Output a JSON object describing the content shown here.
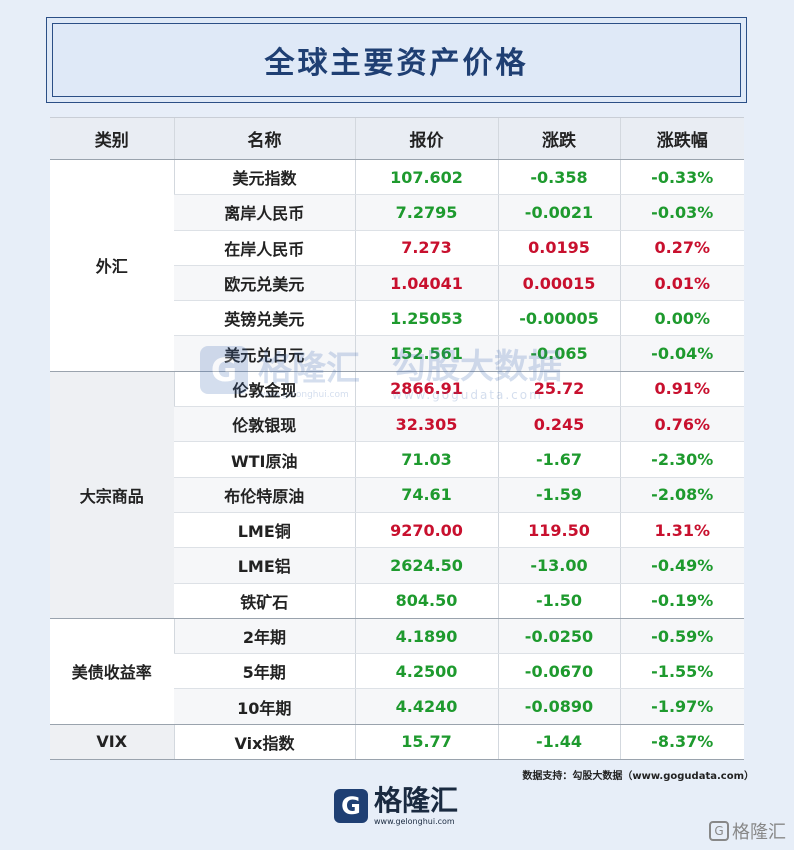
{
  "title": "全球主要资产价格",
  "table": {
    "headers": [
      "类别",
      "名称",
      "报价",
      "涨跌",
      "涨跌幅"
    ],
    "groups": [
      {
        "category": "外汇",
        "rows": [
          {
            "name": "美元指数",
            "price": "107.602",
            "change": "-0.358",
            "pct": "-0.33%",
            "dir": "down"
          },
          {
            "name": "离岸人民币",
            "price": "7.2795",
            "change": "-0.0021",
            "pct": "-0.03%",
            "dir": "down"
          },
          {
            "name": "在岸人民币",
            "price": "7.273",
            "change": "0.0195",
            "pct": "0.27%",
            "dir": "up"
          },
          {
            "name": "欧元兑美元",
            "price": "1.04041",
            "change": "0.00015",
            "pct": "0.01%",
            "dir": "up"
          },
          {
            "name": "英镑兑美元",
            "price": "1.25053",
            "change": "-0.00005",
            "pct": "0.00%",
            "dir": "down"
          },
          {
            "name": "美元兑日元",
            "price": "152.561",
            "change": "-0.065",
            "pct": "-0.04%",
            "dir": "down"
          }
        ]
      },
      {
        "category": "大宗商品",
        "rows": [
          {
            "name": "伦敦金现",
            "price": "2866.91",
            "change": "25.72",
            "pct": "0.91%",
            "dir": "up"
          },
          {
            "name": "伦敦银现",
            "price": "32.305",
            "change": "0.245",
            "pct": "0.76%",
            "dir": "up"
          },
          {
            "name": "WTI原油",
            "price": "71.03",
            "change": "-1.67",
            "pct": "-2.30%",
            "dir": "down"
          },
          {
            "name": "布伦特原油",
            "price": "74.61",
            "change": "-1.59",
            "pct": "-2.08%",
            "dir": "down"
          },
          {
            "name": "LME铜",
            "price": "9270.00",
            "change": "119.50",
            "pct": "1.31%",
            "dir": "up"
          },
          {
            "name": "LME铝",
            "price": "2624.50",
            "change": "-13.00",
            "pct": "-0.49%",
            "dir": "down"
          },
          {
            "name": "铁矿石",
            "price": "804.50",
            "change": "-1.50",
            "pct": "-0.19%",
            "dir": "down"
          }
        ]
      },
      {
        "category": "美债收益率",
        "rows": [
          {
            "name": "2年期",
            "price": "4.1890",
            "change": "-0.0250",
            "pct": "-0.59%",
            "dir": "down"
          },
          {
            "name": "5年期",
            "price": "4.2500",
            "change": "-0.0670",
            "pct": "-1.55%",
            "dir": "down"
          },
          {
            "name": "10年期",
            "price": "4.4240",
            "change": "-0.0890",
            "pct": "-1.97%",
            "dir": "down"
          }
        ]
      },
      {
        "category": "VIX",
        "rows": [
          {
            "name": "Vix指数",
            "price": "15.77",
            "change": "-1.44",
            "pct": "-8.37%",
            "dir": "down"
          }
        ]
      }
    ]
  },
  "watermark": {
    "brand": "格隆汇",
    "brand_url": "www.gelonghui.com",
    "partner": "勾股大数据",
    "partner_url": "www.gogudata.com"
  },
  "source_note": "数据支持：勾股大数据（www.gogudata.com）",
  "footer": {
    "logo_letter": "G",
    "name": "格隆汇",
    "url": "www.gelonghui.com"
  },
  "corner_mark": "格隆汇",
  "colors": {
    "up": "#c8102e",
    "down": "#1e9a2e",
    "title": "#1f3f73"
  }
}
